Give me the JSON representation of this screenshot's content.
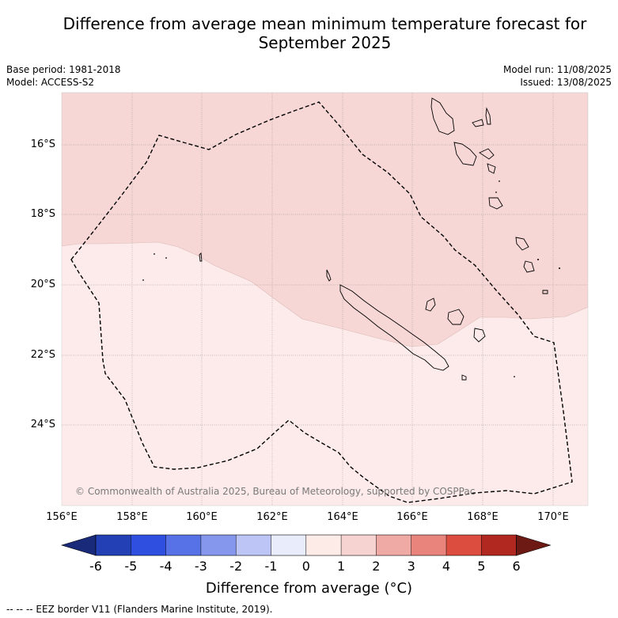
{
  "title_line1": "Difference from average mean minimum temperature forecast for",
  "title_line2": "September 2025",
  "meta": {
    "base_period": "Base period: 1981-2018",
    "model": "Model: ACCESS-S2",
    "model_run": "Model run: 11/08/2025",
    "issued": "Issued: 13/08/2025"
  },
  "copyright": "© Commonwealth of Australia 2025, Bureau of Meteorology, supported by COSPPac",
  "footnote": "--  --  -- EEZ border V11 (Flanders Marine Institute, 2019).",
  "map": {
    "lon_range": [
      156.0,
      171.0
    ],
    "lat_range": [
      -14.5,
      -26.3
    ],
    "lat_labels": [
      "16°S",
      "18°S",
      "20°S",
      "22°S",
      "24°S"
    ],
    "lon_labels": [
      "156°E",
      "158°E",
      "160°E",
      "162°E",
      "164°E",
      "166°E",
      "168°E",
      "170°E"
    ],
    "regions": [
      {
        "category": "0 to 1",
        "color": "#fcebea"
      },
      {
        "category": "1 to 2",
        "color": "#f6d7d5"
      }
    ],
    "grid": true
  },
  "colorbar": {
    "label": "Difference from average (°C)",
    "ticks": [
      "-6",
      "-5",
      "-4",
      "-3",
      "-2",
      "-1",
      "0",
      "1",
      "2",
      "3",
      "4",
      "5",
      "6"
    ],
    "colors": [
      "#1a2a7a",
      "#2340b4",
      "#2f4fe0",
      "#5772e6",
      "#8497ec",
      "#bcc5f5",
      "#e8ecfb",
      "#fdebe8",
      "#f6d3d0",
      "#efaaa5",
      "#e8847c",
      "#dc4c3f",
      "#b0281f",
      "#6e1a14"
    ]
  }
}
